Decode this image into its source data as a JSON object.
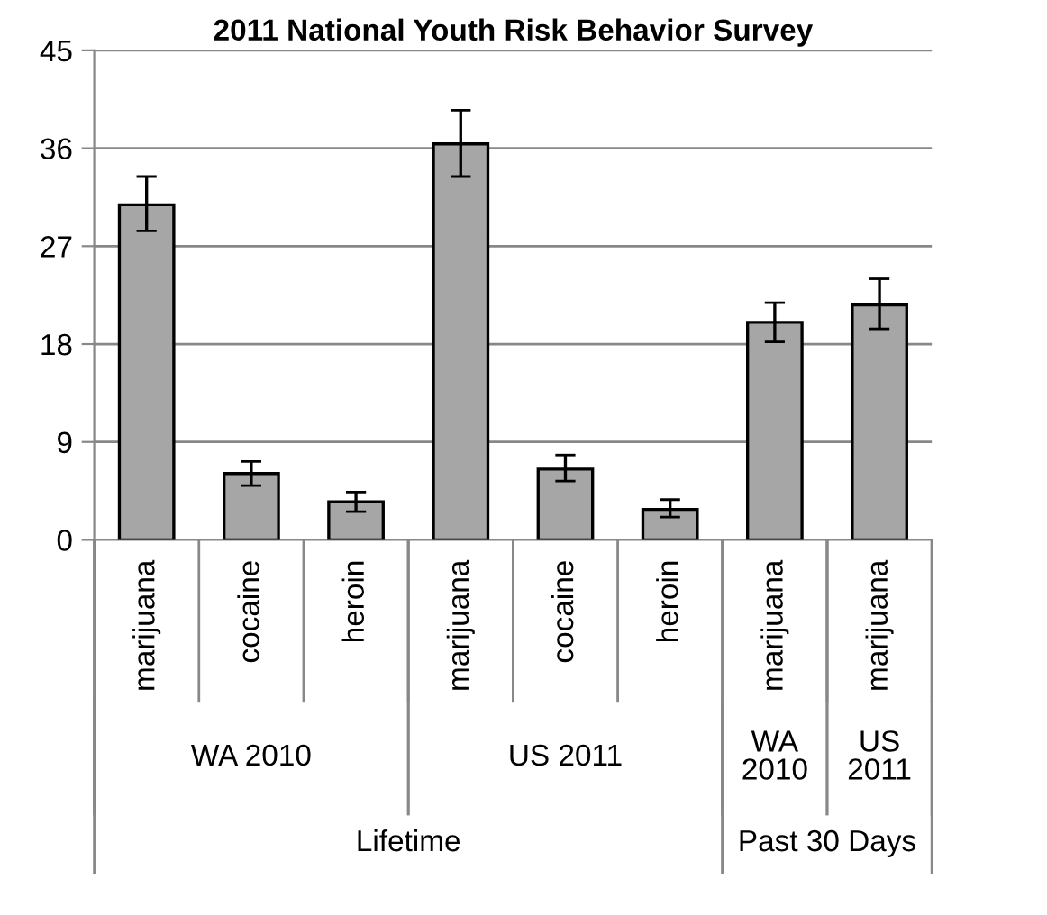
{
  "chart_data": {
    "type": "bar",
    "title": "2011 National Youth Risk Behavior Survey",
    "categories": [
      "marijuana",
      "cocaine",
      "heroin",
      "marijuana",
      "cocaine",
      "heroin",
      "marijuana",
      "marijuana"
    ],
    "values": [
      30.8,
      6.1,
      3.5,
      36.4,
      6.5,
      2.8,
      20.0,
      21.6
    ],
    "errors": [
      [
        28.4,
        33.4
      ],
      [
        5.0,
        7.2
      ],
      [
        2.6,
        4.4
      ],
      [
        33.4,
        39.5
      ],
      [
        5.4,
        7.8
      ],
      [
        2.1,
        3.7
      ],
      [
        18.2,
        21.8
      ],
      [
        19.4,
        24.0
      ]
    ],
    "color": "#a6a6a6",
    "ylim": [
      0,
      45
    ],
    "yticks": [
      0,
      9,
      18,
      27,
      36,
      45
    ],
    "grid": "y",
    "annotations": [
      "WA 2010",
      "US 2011",
      "WA\n2010",
      "US\n2011",
      "Lifetime",
      "Past 30 Days"
    ]
  }
}
